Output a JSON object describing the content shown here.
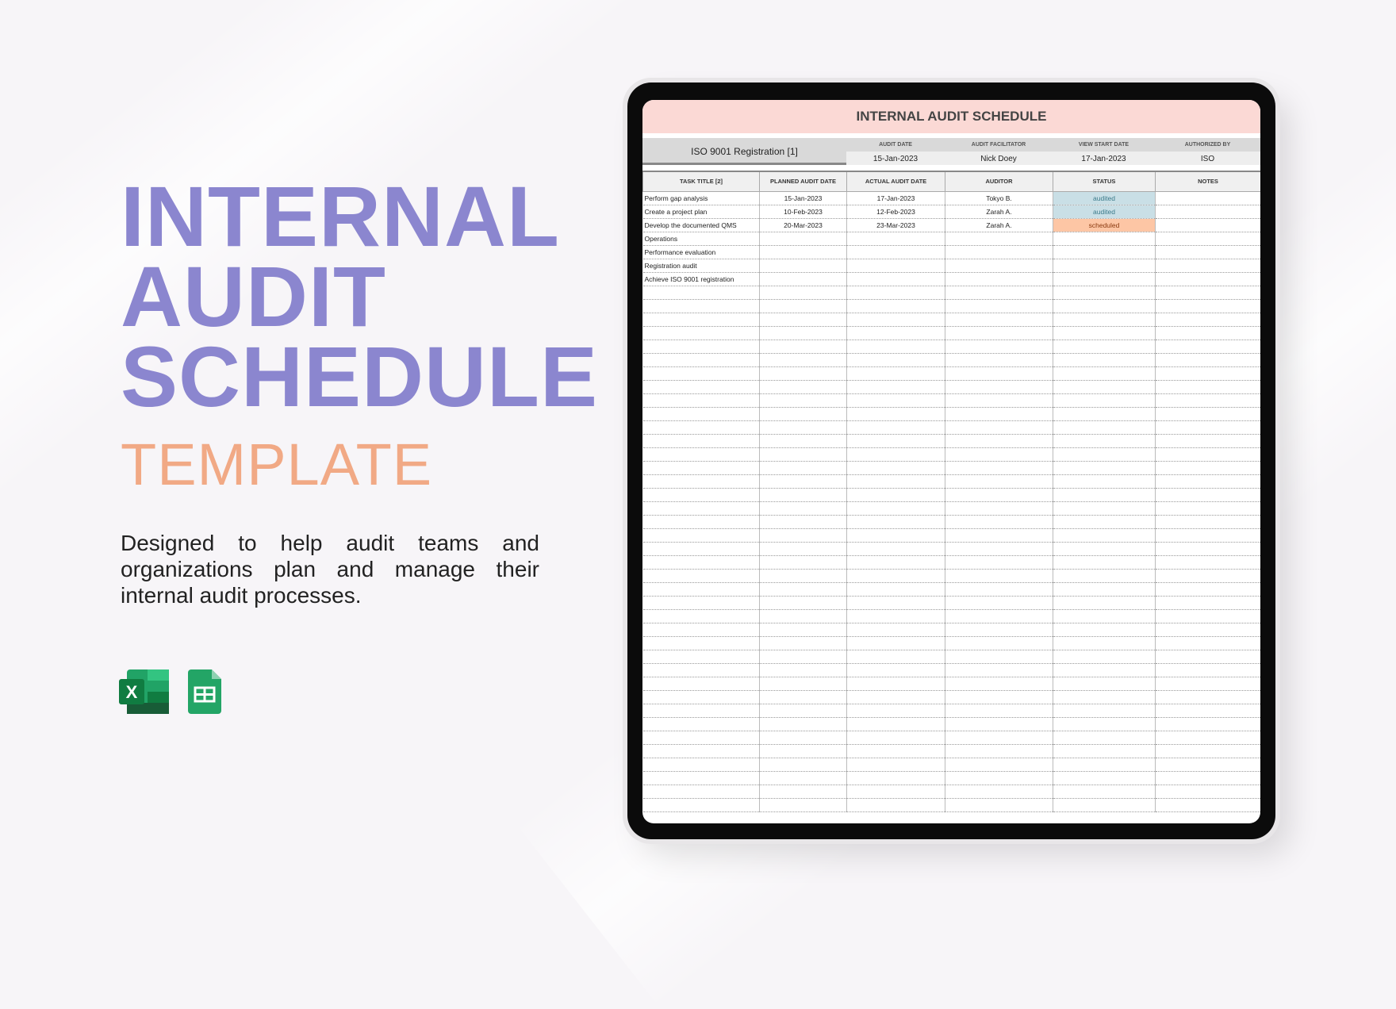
{
  "hero": {
    "line1": "INTERNAL",
    "line2": "AUDIT",
    "line3": "SCHEDULE",
    "subtitle": "TEMPLATE",
    "description": "Designed to help audit teams and organizations plan and manage their internal audit processes.",
    "colors": {
      "title": "#8b86cf",
      "subtitle": "#f1a985"
    }
  },
  "apps": [
    {
      "icon": "excel-icon",
      "letter": "X"
    },
    {
      "icon": "google-sheets-icon"
    }
  ],
  "sheet": {
    "title": "INTERNAL AUDIT SCHEDULE",
    "project": "ISO 9001 Registration [1]",
    "info": [
      {
        "label": "AUDIT DATE",
        "value": "15-Jan-2023"
      },
      {
        "label": "AUDIT FACILITATOR",
        "value": "Nick Doey"
      },
      {
        "label": "VIEW START DATE",
        "value": "17-Jan-2023"
      },
      {
        "label": "AUTHORIZED BY",
        "value": "ISO"
      }
    ],
    "columns": [
      "TASK TITLE [2]",
      "PLANNED AUDIT DATE",
      "ACTUAL AUDIT DATE",
      "AUDITOR",
      "STATUS",
      "NOTES"
    ],
    "rows": [
      [
        "Perform gap analysis",
        "15-Jan-2023",
        "17-Jan-2023",
        "Tokyo B.",
        "audited",
        ""
      ],
      [
        "Create a project plan",
        "10-Feb-2023",
        "12-Feb-2023",
        "Zarah A.",
        "audited",
        ""
      ],
      [
        "Develop the documented QMS",
        "20-Mar-2023",
        "23-Mar-2023",
        "Zarah A.",
        "scheduled",
        ""
      ],
      [
        "Operations",
        "",
        "",
        "",
        "",
        ""
      ],
      [
        "Performance evaluation",
        "",
        "",
        "",
        "",
        ""
      ],
      [
        "Registration audit",
        "",
        "",
        "",
        "",
        ""
      ],
      [
        "Achieve ISO 9001 registration",
        "",
        "",
        "",
        "",
        ""
      ]
    ],
    "status_colors": {
      "audited": "#c9dfe6",
      "scheduled": "#fdc6a5"
    }
  }
}
